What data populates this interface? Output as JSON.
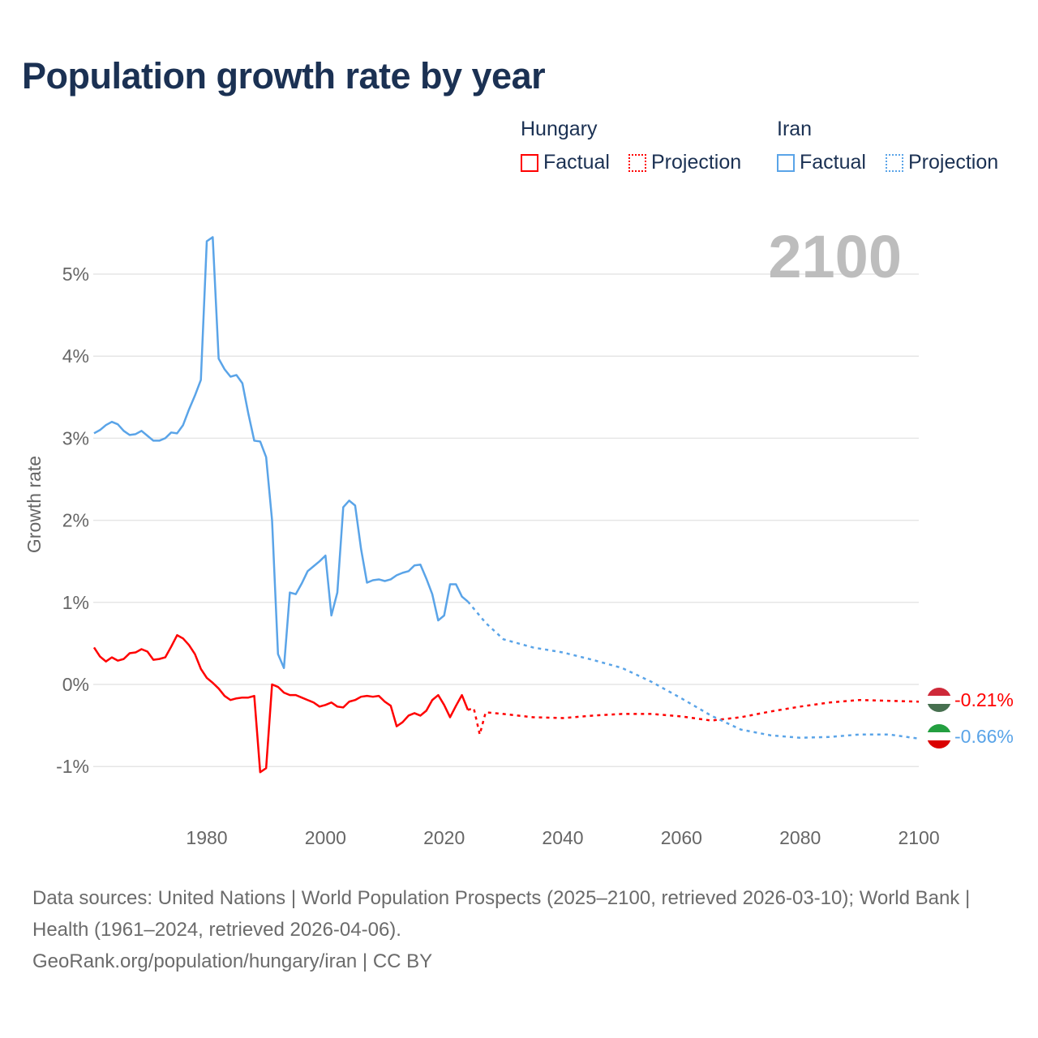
{
  "chart_data": {
    "type": "line",
    "title": "Population growth rate by year",
    "xlabel": "",
    "ylabel": "Growth rate",
    "xlim": [
      1961,
      2100
    ],
    "ylim": [
      -1.6,
      5.7
    ],
    "xticks": [
      1980,
      2000,
      2020,
      2040,
      2060,
      2080,
      2100
    ],
    "xtick_labels": [
      "1980",
      "2000",
      "2020",
      "2040",
      "2060",
      "2080",
      "2100"
    ],
    "yticks": [
      -1,
      0,
      1,
      2,
      3,
      4,
      5
    ],
    "ytick_labels": [
      "-1%",
      "0%",
      "1%",
      "2%",
      "3%",
      "4%",
      "5%"
    ],
    "grid": true,
    "year_label": "2100",
    "legend": {
      "placement": "top-right",
      "groups": [
        {
          "name": "Hungary",
          "factual": "Factual",
          "projection": "Projection",
          "color": "#ff0000"
        },
        {
          "name": "Iran",
          "factual": "Factual",
          "projection": "Projection",
          "color": "#5aa4e8"
        }
      ]
    },
    "series": [
      {
        "name": "Hungary",
        "color": "#ff0000",
        "end_label": "-0.21%",
        "factual": {
          "x": [
            1961,
            1962,
            1963,
            1964,
            1965,
            1966,
            1967,
            1968,
            1969,
            1970,
            1971,
            1972,
            1973,
            1974,
            1975,
            1976,
            1977,
            1978,
            1979,
            1980,
            1981,
            1982,
            1983,
            1984,
            1985,
            1986,
            1987,
            1988,
            1989,
            1990,
            1991,
            1992,
            1993,
            1994,
            1995,
            1996,
            1997,
            1998,
            1999,
            2000,
            2001,
            2002,
            2003,
            2004,
            2005,
            2006,
            2007,
            2008,
            2009,
            2010,
            2011,
            2012,
            2013,
            2014,
            2015,
            2016,
            2017,
            2018,
            2019,
            2020,
            2021,
            2022,
            2023,
            2024
          ],
          "y": [
            0.45,
            0.34,
            0.28,
            0.33,
            0.29,
            0.31,
            0.38,
            0.39,
            0.43,
            0.4,
            0.3,
            0.31,
            0.33,
            0.46,
            0.6,
            0.56,
            0.48,
            0.37,
            0.19,
            0.08,
            0.02,
            -0.05,
            -0.14,
            -0.19,
            -0.17,
            -0.16,
            -0.16,
            -0.14,
            -1.07,
            -1.02,
            0.0,
            -0.03,
            -0.1,
            -0.13,
            -0.13,
            -0.16,
            -0.19,
            -0.22,
            -0.27,
            -0.25,
            -0.22,
            -0.27,
            -0.28,
            -0.21,
            -0.19,
            -0.15,
            -0.14,
            -0.15,
            -0.14,
            -0.21,
            -0.26,
            -0.51,
            -0.46,
            -0.38,
            -0.35,
            -0.38,
            -0.32,
            -0.19,
            -0.13,
            -0.25,
            -0.4,
            -0.26,
            -0.13,
            -0.31
          ]
        },
        "projection": {
          "x": [
            2024,
            2025,
            2026,
            2027,
            2030,
            2035,
            2040,
            2045,
            2050,
            2055,
            2060,
            2065,
            2070,
            2075,
            2080,
            2085,
            2090,
            2095,
            2100
          ],
          "y": [
            -0.31,
            -0.29,
            -0.61,
            -0.34,
            -0.36,
            -0.4,
            -0.41,
            -0.38,
            -0.36,
            -0.36,
            -0.39,
            -0.44,
            -0.4,
            -0.33,
            -0.27,
            -0.22,
            -0.19,
            -0.2,
            -0.21
          ]
        }
      },
      {
        "name": "Iran",
        "color": "#5aa4e8",
        "end_label": "-0.66%",
        "factual": {
          "x": [
            1961,
            1962,
            1963,
            1964,
            1965,
            1966,
            1967,
            1968,
            1969,
            1970,
            1971,
            1972,
            1973,
            1974,
            1975,
            1976,
            1977,
            1978,
            1979,
            1980,
            1981,
            1982,
            1983,
            1984,
            1985,
            1986,
            1987,
            1988,
            1989,
            1990,
            1991,
            1992,
            1993,
            1994,
            1995,
            1996,
            1997,
            1998,
            1999,
            2000,
            2001,
            2002,
            2003,
            2004,
            2005,
            2006,
            2007,
            2008,
            2009,
            2010,
            2011,
            2012,
            2013,
            2014,
            2015,
            2016,
            2017,
            2018,
            2019,
            2020,
            2021,
            2022,
            2023,
            2024
          ],
          "y": [
            3.06,
            3.1,
            3.16,
            3.2,
            3.17,
            3.09,
            3.04,
            3.05,
            3.09,
            3.03,
            2.97,
            2.97,
            3.0,
            3.07,
            3.06,
            3.16,
            3.35,
            3.52,
            3.71,
            5.4,
            5.45,
            3.97,
            3.84,
            3.75,
            3.77,
            3.67,
            3.3,
            2.97,
            2.96,
            2.77,
            2.0,
            0.37,
            0.2,
            1.12,
            1.1,
            1.23,
            1.38,
            1.44,
            1.5,
            1.57,
            0.84,
            1.12,
            2.16,
            2.24,
            2.18,
            1.65,
            1.24,
            1.27,
            1.28,
            1.26,
            1.28,
            1.33,
            1.36,
            1.38,
            1.45,
            1.46,
            1.29,
            1.1,
            0.78,
            0.84,
            1.22,
            1.22,
            1.07,
            1.01
          ]
        },
        "projection": {
          "x": [
            2024,
            2027,
            2030,
            2035,
            2040,
            2045,
            2050,
            2055,
            2060,
            2065,
            2070,
            2075,
            2080,
            2085,
            2090,
            2095,
            2100
          ],
          "y": [
            1.01,
            0.75,
            0.55,
            0.45,
            0.39,
            0.3,
            0.2,
            0.03,
            -0.17,
            -0.38,
            -0.55,
            -0.62,
            -0.65,
            -0.64,
            -0.61,
            -0.61,
            -0.66
          ]
        }
      }
    ]
  },
  "footer": {
    "sources": "Data sources: United Nations | World Population Prospects (2025–2100, retrieved 2026-03-10); World Bank | Health (1961–2024, retrieved 2026-04-06).",
    "credit": "GeoRank.org/population/hungary/iran | CC BY"
  }
}
